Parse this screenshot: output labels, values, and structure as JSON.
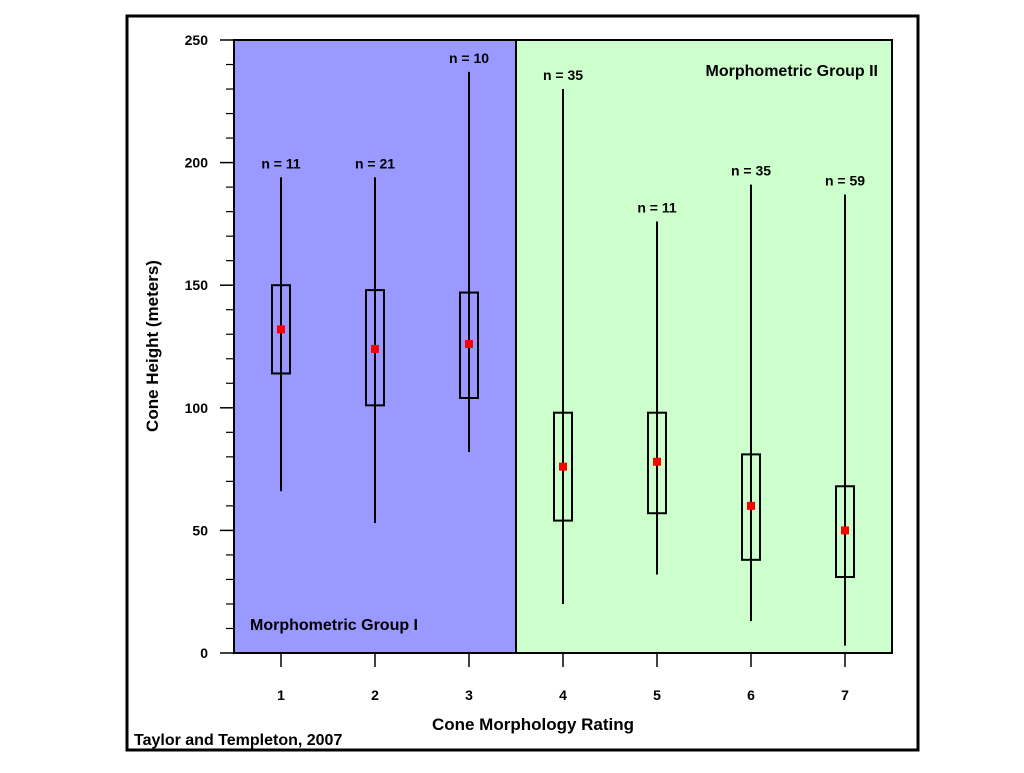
{
  "chart_data": {
    "type": "box",
    "xlabel": "Cone Morphology Rating",
    "ylabel": "Cone Height (meters)",
    "ylim": [
      0,
      250
    ],
    "xlim": [
      0.5,
      7.5
    ],
    "y_ticks": [
      0,
      50,
      100,
      150,
      200,
      250
    ],
    "y_minor_step": 10,
    "categories": [
      "1",
      "2",
      "3",
      "4",
      "5",
      "6",
      "7"
    ],
    "regions": [
      {
        "label": "Morphometric Group I",
        "from": 0.5,
        "to": 3.5,
        "color": "#9999ff",
        "label_position": "bottom-left"
      },
      {
        "label": "Morphometric Group II",
        "from": 3.5,
        "to": 7.5,
        "color": "#ccffcc",
        "label_position": "top-right"
      }
    ],
    "boxes": [
      {
        "x": "1",
        "n_label": "n = 11",
        "whisker_low": 66,
        "box_low": 114,
        "mean": 132,
        "box_high": 150,
        "whisker_high": 194
      },
      {
        "x": "2",
        "n_label": "n = 21",
        "whisker_low": 53,
        "box_low": 101,
        "mean": 124,
        "box_high": 148,
        "whisker_high": 194
      },
      {
        "x": "3",
        "n_label": "n = 10",
        "whisker_low": 82,
        "box_low": 104,
        "mean": 126,
        "box_high": 147,
        "whisker_high": 237
      },
      {
        "x": "4",
        "n_label": "n = 35",
        "whisker_low": 20,
        "box_low": 54,
        "mean": 76,
        "box_high": 98,
        "whisker_high": 230
      },
      {
        "x": "5",
        "n_label": "n = 11",
        "whisker_low": 32,
        "box_low": 57,
        "mean": 78,
        "box_high": 98,
        "whisker_high": 176
      },
      {
        "x": "6",
        "n_label": "n = 35",
        "whisker_low": 13,
        "box_low": 38,
        "mean": 60,
        "box_high": 81,
        "whisker_high": 191
      },
      {
        "x": "7",
        "n_label": "n = 59",
        "whisker_low": 3,
        "box_low": 31,
        "mean": 50,
        "box_high": 68,
        "whisker_high": 187
      }
    ],
    "mean_marker_color": "#ff0000",
    "grid": false,
    "source_note": "Taylor and Templeton, 2007"
  }
}
